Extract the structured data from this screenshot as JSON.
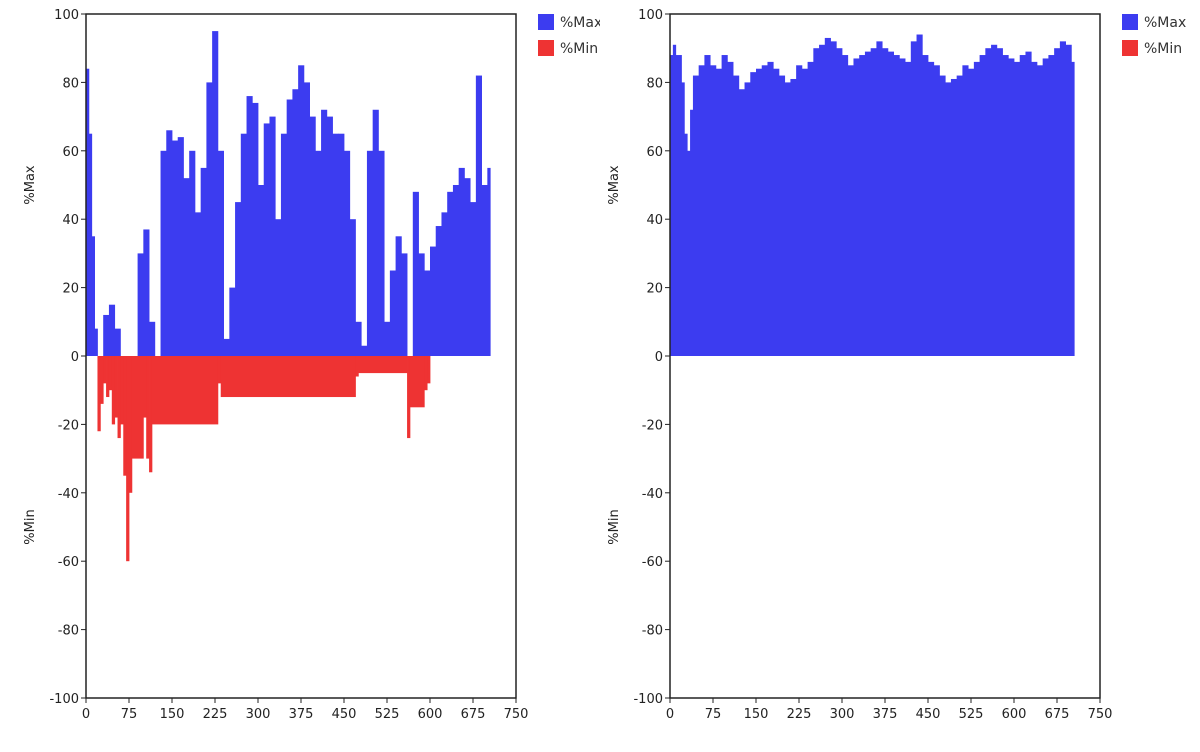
{
  "colors": {
    "max": "#3c3cf0",
    "min": "#ee3333",
    "axis": "#222222"
  },
  "chart_data": [
    {
      "id": "left",
      "type": "bar",
      "ylabel_top": "%Max",
      "ylabel_bottom": "%Min",
      "xlim": [
        0,
        750
      ],
      "ylim": [
        -100,
        100
      ],
      "xticks": [
        0,
        75,
        150,
        225,
        300,
        375,
        450,
        525,
        600,
        675,
        750
      ],
      "yticks": [
        100,
        80,
        60,
        40,
        20,
        0,
        -20,
        -40,
        -60,
        -80,
        -100
      ],
      "legend": {
        "position": "top-right",
        "entries": [
          "%Max",
          "%Min"
        ]
      },
      "series": [
        {
          "name": "%Max",
          "color": "#3c3cf0",
          "x": [
            0,
            5,
            10,
            15,
            20,
            30,
            40,
            50,
            60,
            70,
            80,
            90,
            100,
            110,
            120,
            130,
            140,
            150,
            160,
            170,
            180,
            190,
            200,
            210,
            220,
            230,
            240,
            250,
            260,
            270,
            280,
            290,
            300,
            310,
            320,
            330,
            340,
            350,
            360,
            370,
            380,
            390,
            400,
            410,
            420,
            430,
            440,
            450,
            460,
            470,
            480,
            490,
            500,
            510,
            520,
            530,
            540,
            550,
            560,
            570,
            580,
            590,
            600,
            610,
            620,
            630,
            640,
            650,
            660,
            670,
            680,
            690,
            700
          ],
          "values": [
            84,
            65,
            35,
            8,
            0,
            12,
            15,
            8,
            0,
            0,
            0,
            30,
            37,
            10,
            0,
            60,
            66,
            63,
            64,
            52,
            60,
            42,
            55,
            80,
            95,
            60,
            5,
            20,
            45,
            65,
            76,
            74,
            50,
            68,
            70,
            40,
            65,
            75,
            78,
            85,
            80,
            70,
            60,
            72,
            70,
            65,
            65,
            60,
            40,
            10,
            3,
            60,
            72,
            60,
            10,
            25,
            35,
            30,
            0,
            48,
            30,
            25,
            32,
            38,
            42,
            48,
            50,
            55,
            52,
            45,
            82,
            50,
            55
          ]
        },
        {
          "name": "%Min",
          "color": "#ee3333",
          "x": [
            20,
            25,
            30,
            35,
            40,
            45,
            50,
            55,
            60,
            65,
            70,
            75,
            80,
            100,
            105,
            110,
            115,
            230,
            235,
            470,
            475,
            560,
            565,
            590,
            595
          ],
          "values": [
            -22,
            -14,
            -8,
            -12,
            -10,
            -20,
            -18,
            -24,
            -20,
            -35,
            -60,
            -40,
            -30,
            -18,
            -30,
            -34,
            -20,
            -8,
            -12,
            -6,
            -5,
            -24,
            -15,
            -10,
            -8
          ]
        }
      ]
    },
    {
      "id": "right",
      "type": "bar",
      "ylabel_top": "%Max",
      "ylabel_bottom": "%Min",
      "xlim": [
        0,
        750
      ],
      "ylim": [
        -100,
        100
      ],
      "xticks": [
        0,
        75,
        150,
        225,
        300,
        375,
        450,
        525,
        600,
        675,
        750
      ],
      "yticks": [
        100,
        80,
        60,
        40,
        20,
        0,
        -20,
        -40,
        -60,
        -80,
        -100
      ],
      "legend": {
        "position": "top-right",
        "entries": [
          "%Max",
          "%Min"
        ]
      },
      "series": [
        {
          "name": "%Max",
          "color": "#3c3cf0",
          "x": [
            0,
            5,
            10,
            20,
            25,
            30,
            35,
            40,
            50,
            60,
            70,
            80,
            90,
            100,
            110,
            120,
            130,
            140,
            150,
            160,
            170,
            180,
            190,
            200,
            210,
            220,
            230,
            240,
            250,
            260,
            270,
            280,
            290,
            300,
            310,
            320,
            330,
            340,
            350,
            360,
            370,
            380,
            390,
            400,
            410,
            420,
            430,
            440,
            450,
            460,
            470,
            480,
            490,
            500,
            510,
            520,
            530,
            540,
            550,
            560,
            570,
            580,
            590,
            600,
            610,
            620,
            630,
            640,
            650,
            660,
            670,
            680,
            690,
            700
          ],
          "values": [
            88,
            91,
            88,
            80,
            65,
            60,
            72,
            82,
            85,
            88,
            85,
            84,
            88,
            86,
            82,
            78,
            80,
            83,
            84,
            85,
            86,
            84,
            82,
            80,
            81,
            85,
            84,
            86,
            90,
            91,
            93,
            92,
            90,
            88,
            85,
            87,
            88,
            89,
            90,
            92,
            90,
            89,
            88,
            87,
            86,
            92,
            94,
            88,
            86,
            85,
            82,
            80,
            81,
            82,
            85,
            84,
            86,
            88,
            90,
            91,
            90,
            88,
            87,
            86,
            88,
            89,
            86,
            85,
            87,
            88,
            90,
            92,
            91,
            86
          ]
        },
        {
          "name": "%Min",
          "color": "#ee3333",
          "x": [],
          "values": []
        }
      ]
    }
  ]
}
